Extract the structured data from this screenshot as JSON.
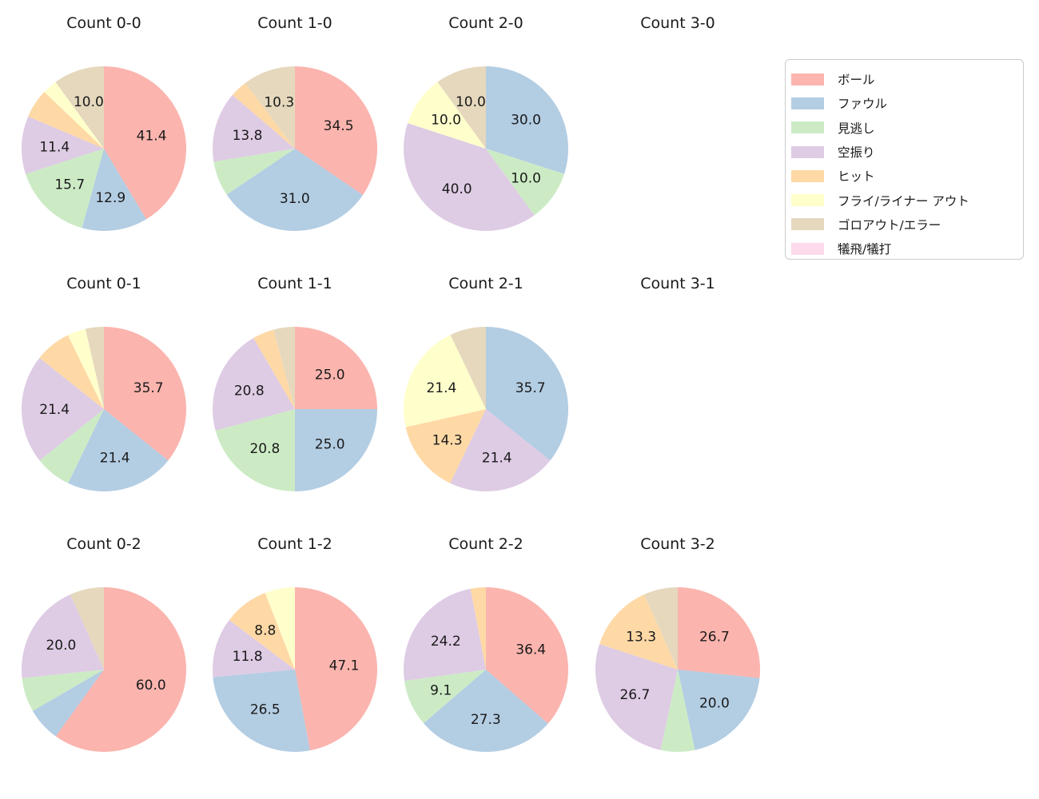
{
  "legend": {
    "items": [
      {
        "key": "ball",
        "label": "ボール",
        "color": "#fbb4ae"
      },
      {
        "key": "foul",
        "label": "ファウル",
        "color": "#b3cde3"
      },
      {
        "key": "called-strike",
        "label": "見逃し",
        "color": "#ccebc5"
      },
      {
        "key": "swinging-strike",
        "label": "空振り",
        "color": "#decbe4"
      },
      {
        "key": "hit",
        "label": "ヒット",
        "color": "#fed9a6"
      },
      {
        "key": "fly-liner-out",
        "label": "フライ/ライナー アウト",
        "color": "#ffffcc"
      },
      {
        "key": "groundout-error",
        "label": "ゴロアウト/エラー",
        "color": "#e5d8bd"
      },
      {
        "key": "sacrifice",
        "label": "犠飛/犠打",
        "color": "#fddaec"
      }
    ]
  },
  "chart_data": [
    {
      "type": "pie",
      "title": "Count 0-0",
      "start_angle_deg": 90,
      "clockwise": true,
      "label_radius_frac": 0.6,
      "slices": [
        {
          "key": "ball",
          "label": "ボール",
          "value": 41.4,
          "pct_label": "41.4"
        },
        {
          "key": "foul",
          "label": "ファウル",
          "value": 12.9,
          "pct_label": "12.9"
        },
        {
          "key": "called-strike",
          "label": "見逃し",
          "value": 15.7,
          "pct_label": "15.7"
        },
        {
          "key": "swinging-strike",
          "label": "空振り",
          "value": 11.4,
          "pct_label": "11.4"
        },
        {
          "key": "hit",
          "label": "ヒット",
          "value": 5.7,
          "pct_label": ""
        },
        {
          "key": "fly-liner-out",
          "label": "フライ/ライナー アウト",
          "value": 2.9,
          "pct_label": ""
        },
        {
          "key": "groundout-error",
          "label": "ゴロアウト/エラー",
          "value": 10.0,
          "pct_label": "10.0"
        }
      ]
    },
    {
      "type": "pie",
      "title": "Count 1-0",
      "start_angle_deg": 90,
      "clockwise": true,
      "label_radius_frac": 0.6,
      "slices": [
        {
          "key": "ball",
          "label": "ボール",
          "value": 34.5,
          "pct_label": "34.5"
        },
        {
          "key": "foul",
          "label": "ファウル",
          "value": 31.0,
          "pct_label": "31.0"
        },
        {
          "key": "called-strike",
          "label": "見逃し",
          "value": 6.9,
          "pct_label": ""
        },
        {
          "key": "swinging-strike",
          "label": "空振り",
          "value": 13.8,
          "pct_label": "13.8"
        },
        {
          "key": "hit",
          "label": "ヒット",
          "value": 3.4,
          "pct_label": ""
        },
        {
          "key": "groundout-error",
          "label": "ゴロアウト/エラー",
          "value": 10.3,
          "pct_label": "10.3"
        }
      ]
    },
    {
      "type": "pie",
      "title": "Count 2-0",
      "start_angle_deg": 90,
      "clockwise": true,
      "label_radius_frac": 0.6,
      "slices": [
        {
          "key": "foul",
          "label": "ファウル",
          "value": 30.0,
          "pct_label": "30.0"
        },
        {
          "key": "called-strike",
          "label": "見逃し",
          "value": 10.0,
          "pct_label": "10.0"
        },
        {
          "key": "swinging-strike",
          "label": "空振り",
          "value": 40.0,
          "pct_label": "40.0"
        },
        {
          "key": "fly-liner-out",
          "label": "フライ/ライナー アウト",
          "value": 10.0,
          "pct_label": "10.0"
        },
        {
          "key": "groundout-error",
          "label": "ゴロアウト/エラー",
          "value": 10.0,
          "pct_label": "10.0"
        }
      ]
    },
    {
      "type": "pie",
      "title": "Count 3-0",
      "start_angle_deg": 90,
      "clockwise": true,
      "label_radius_frac": 0.6,
      "slices": []
    },
    {
      "type": "pie",
      "title": "Count 0-1",
      "start_angle_deg": 90,
      "clockwise": true,
      "label_radius_frac": 0.6,
      "slices": [
        {
          "key": "ball",
          "label": "ボール",
          "value": 35.7,
          "pct_label": "35.7"
        },
        {
          "key": "foul",
          "label": "ファウル",
          "value": 21.4,
          "pct_label": "21.4"
        },
        {
          "key": "called-strike",
          "label": "見逃し",
          "value": 7.1,
          "pct_label": ""
        },
        {
          "key": "swinging-strike",
          "label": "空振り",
          "value": 21.4,
          "pct_label": "21.4"
        },
        {
          "key": "hit",
          "label": "ヒット",
          "value": 7.1,
          "pct_label": ""
        },
        {
          "key": "fly-liner-out",
          "label": "フライ/ライナー アウト",
          "value": 3.6,
          "pct_label": ""
        },
        {
          "key": "groundout-error",
          "label": "ゴロアウト/エラー",
          "value": 3.6,
          "pct_label": ""
        }
      ]
    },
    {
      "type": "pie",
      "title": "Count 1-1",
      "start_angle_deg": 90,
      "clockwise": true,
      "label_radius_frac": 0.6,
      "slices": [
        {
          "key": "ball",
          "label": "ボール",
          "value": 25.0,
          "pct_label": "25.0"
        },
        {
          "key": "foul",
          "label": "ファウル",
          "value": 25.0,
          "pct_label": "25.0"
        },
        {
          "key": "called-strike",
          "label": "見逃し",
          "value": 20.8,
          "pct_label": "20.8"
        },
        {
          "key": "swinging-strike",
          "label": "空振り",
          "value": 20.8,
          "pct_label": "20.8"
        },
        {
          "key": "hit",
          "label": "ヒット",
          "value": 4.2,
          "pct_label": ""
        },
        {
          "key": "groundout-error",
          "label": "ゴロアウト/エラー",
          "value": 4.2,
          "pct_label": ""
        }
      ]
    },
    {
      "type": "pie",
      "title": "Count 2-1",
      "start_angle_deg": 90,
      "clockwise": true,
      "label_radius_frac": 0.6,
      "slices": [
        {
          "key": "foul",
          "label": "ファウル",
          "value": 35.7,
          "pct_label": "35.7"
        },
        {
          "key": "swinging-strike",
          "label": "空振り",
          "value": 21.4,
          "pct_label": "21.4"
        },
        {
          "key": "hit",
          "label": "ヒット",
          "value": 14.3,
          "pct_label": "14.3"
        },
        {
          "key": "fly-liner-out",
          "label": "フライ/ライナー アウト",
          "value": 21.4,
          "pct_label": "21.4"
        },
        {
          "key": "groundout-error",
          "label": "ゴロアウト/エラー",
          "value": 7.1,
          "pct_label": ""
        }
      ]
    },
    {
      "type": "pie",
      "title": "Count 3-1",
      "start_angle_deg": 90,
      "clockwise": true,
      "label_radius_frac": 0.6,
      "slices": []
    },
    {
      "type": "pie",
      "title": "Count 0-2",
      "start_angle_deg": 90,
      "clockwise": true,
      "label_radius_frac": 0.6,
      "slices": [
        {
          "key": "ball",
          "label": "ボール",
          "value": 60.0,
          "pct_label": "60.0"
        },
        {
          "key": "foul",
          "label": "ファウル",
          "value": 6.7,
          "pct_label": ""
        },
        {
          "key": "called-strike",
          "label": "見逃し",
          "value": 6.7,
          "pct_label": ""
        },
        {
          "key": "swinging-strike",
          "label": "空振り",
          "value": 20.0,
          "pct_label": "20.0"
        },
        {
          "key": "groundout-error",
          "label": "ゴロアウト/エラー",
          "value": 6.7,
          "pct_label": ""
        }
      ]
    },
    {
      "type": "pie",
      "title": "Count 1-2",
      "start_angle_deg": 90,
      "clockwise": true,
      "label_radius_frac": 0.6,
      "slices": [
        {
          "key": "ball",
          "label": "ボール",
          "value": 47.1,
          "pct_label": "47.1"
        },
        {
          "key": "foul",
          "label": "ファウル",
          "value": 26.5,
          "pct_label": "26.5"
        },
        {
          "key": "swinging-strike",
          "label": "空振り",
          "value": 11.8,
          "pct_label": "11.8"
        },
        {
          "key": "hit",
          "label": "ヒット",
          "value": 8.8,
          "pct_label": "8.8"
        },
        {
          "key": "fly-liner-out",
          "label": "フライ/ライナー アウト",
          "value": 5.9,
          "pct_label": ""
        }
      ]
    },
    {
      "type": "pie",
      "title": "Count 2-2",
      "start_angle_deg": 90,
      "clockwise": true,
      "label_radius_frac": 0.6,
      "slices": [
        {
          "key": "ball",
          "label": "ボール",
          "value": 36.4,
          "pct_label": "36.4"
        },
        {
          "key": "foul",
          "label": "ファウル",
          "value": 27.3,
          "pct_label": "27.3"
        },
        {
          "key": "called-strike",
          "label": "見逃し",
          "value": 9.1,
          "pct_label": "9.1"
        },
        {
          "key": "swinging-strike",
          "label": "空振り",
          "value": 24.2,
          "pct_label": "24.2"
        },
        {
          "key": "hit",
          "label": "ヒット",
          "value": 3.0,
          "pct_label": ""
        }
      ]
    },
    {
      "type": "pie",
      "title": "Count 3-2",
      "start_angle_deg": 90,
      "clockwise": true,
      "label_radius_frac": 0.6,
      "slices": [
        {
          "key": "ball",
          "label": "ボール",
          "value": 26.7,
          "pct_label": "26.7"
        },
        {
          "key": "foul",
          "label": "ファウル",
          "value": 20.0,
          "pct_label": "20.0"
        },
        {
          "key": "called-strike",
          "label": "見逃し",
          "value": 6.7,
          "pct_label": ""
        },
        {
          "key": "swinging-strike",
          "label": "空振り",
          "value": 26.7,
          "pct_label": "26.7"
        },
        {
          "key": "hit",
          "label": "ヒット",
          "value": 13.3,
          "pct_label": "13.3"
        },
        {
          "key": "groundout-error",
          "label": "ゴロアウト/エラー",
          "value": 6.7,
          "pct_label": ""
        }
      ]
    }
  ]
}
